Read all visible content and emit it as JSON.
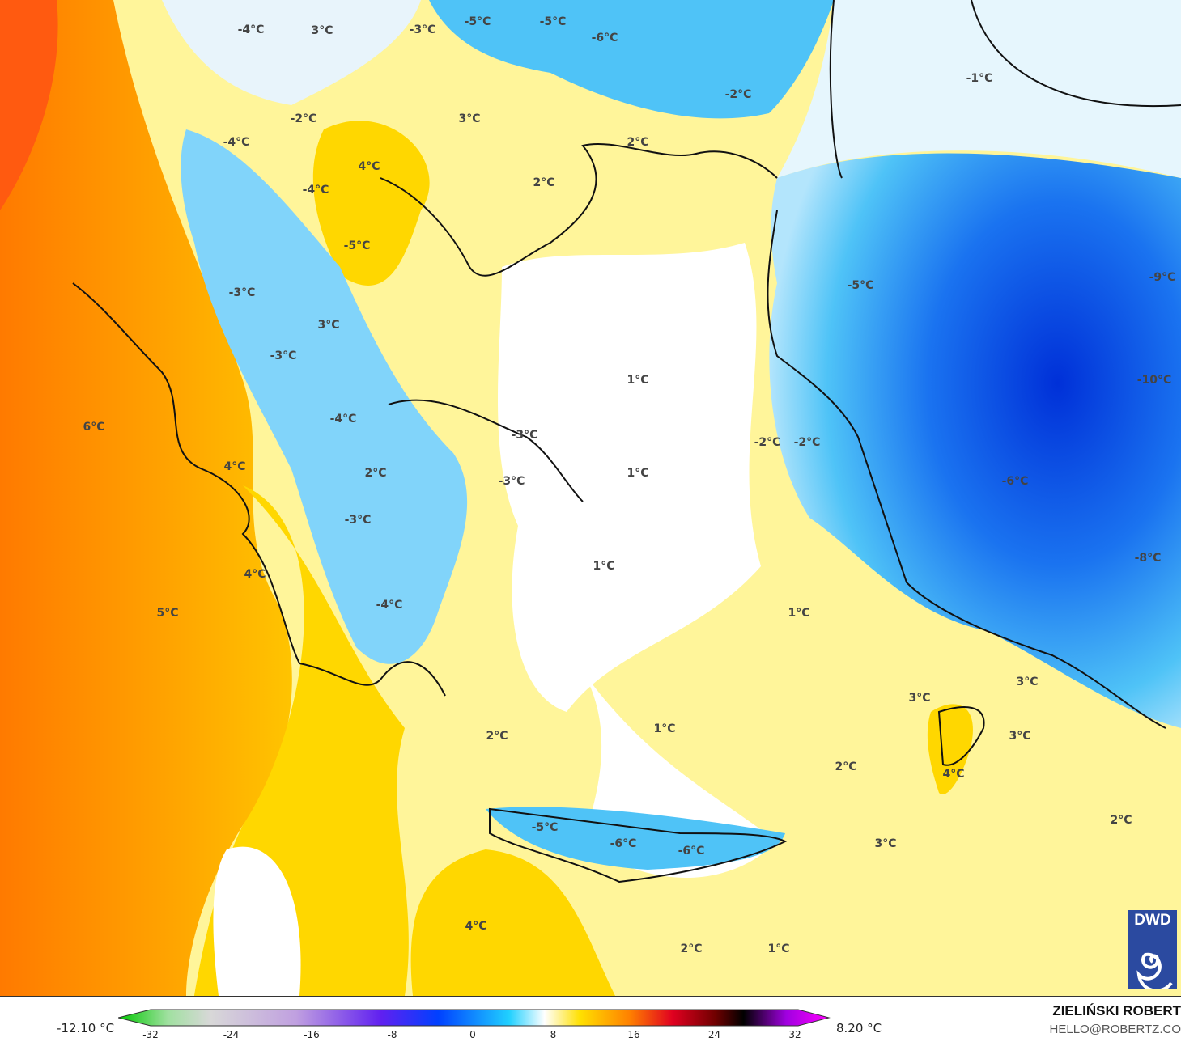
{
  "map": {
    "labels": [
      "-4°C",
      "3°C",
      "-3°C",
      "-5°C",
      "-5°C",
      "-6°C",
      "-2°C",
      "-1°C",
      "-2°C",
      "3°C",
      "-4°C",
      "2°C",
      "4°C",
      "2°C",
      "-4°C",
      "-5°C",
      "-3°C",
      "-5°C",
      "-9°C",
      "3°C",
      "-3°C",
      "1°C",
      "-10°C",
      "6°C",
      "-4°C",
      "-3°C",
      "-2°C",
      "-2°C",
      "4°C",
      "2°C",
      "1°C",
      "-3°C",
      "-6°C",
      "-3°C",
      "1°C",
      "-8°C",
      "4°C",
      "-4°C",
      "5°C",
      "1°C",
      "3°C",
      "3°C",
      "1°C",
      "2°C",
      "3°C",
      "2°C",
      "4°C",
      "2°C",
      "-5°C",
      "-6°C",
      "-6°C",
      "3°C",
      "4°C",
      "2°C",
      "1°C"
    ],
    "logo_text": "DWD",
    "colors": {
      "warm": "#ff8c00",
      "yellow": "#ffd700",
      "pale": "#fff59a",
      "cold": "#29b6f6",
      "very_cold": "#0040e0"
    }
  },
  "legend": {
    "min_label": "-12.10 °C",
    "max_label": "8.20 °C",
    "ticks": [
      "-32",
      "-24",
      "-16",
      "-8",
      "0",
      "8",
      "16",
      "24",
      "32"
    ],
    "range": [
      -32,
      32
    ]
  },
  "credit": {
    "author": "ZIELIŃSKI ROBERT",
    "email": "HELLO@ROBERTZ.CO"
  }
}
